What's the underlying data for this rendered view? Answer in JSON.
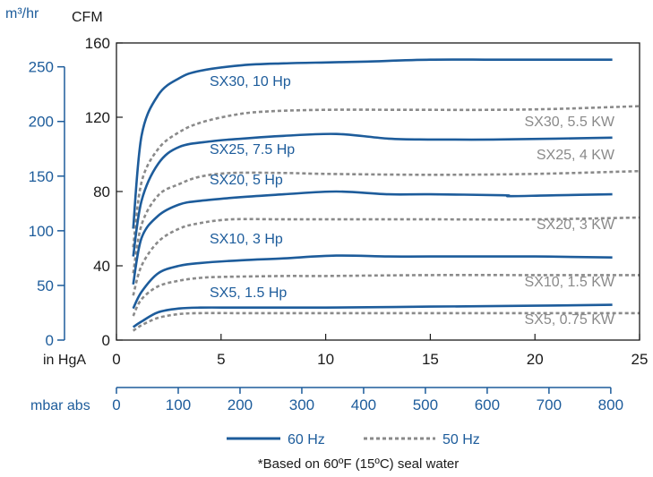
{
  "units": {
    "left_outer": "m³/hr",
    "left_inner": "CFM",
    "bottom_inner": "in HgA",
    "bottom_outer": "mbar abs"
  },
  "legend": {
    "solid_label": "60 Hz",
    "dashed_label": "50 Hz"
  },
  "note": "*Based on 60ºF (15ºC) seal water",
  "colors": {
    "series_60hz": "#1d5c9b",
    "series_50hz": "#8a8a8a",
    "axis": "#1a1a1a",
    "secondary_axis": "#1d5c9b"
  },
  "chart_data": {
    "type": "line",
    "title": "",
    "xlabel": "in HgA",
    "ylabel": "CFM",
    "xlim": [
      0,
      25
    ],
    "ylim": [
      0,
      160
    ],
    "x_ticks": [
      0,
      5,
      10,
      15,
      20,
      25
    ],
    "y_ticks": [
      0,
      40,
      80,
      120,
      160
    ],
    "grid": false,
    "secondary_y_axis": {
      "label": "m³/hr",
      "ticks": [
        0,
        50,
        100,
        150,
        200,
        250
      ],
      "cfm_per_unit": 0.5886
    },
    "secondary_x_axis": {
      "label": "mbar abs",
      "ticks": [
        0,
        100,
        200,
        300,
        400,
        500,
        600,
        700,
        800
      ],
      "inhg_per_unit": 0.02953
    },
    "series": [
      {
        "name": "SX30, 10 Hp",
        "frequency": "60 Hz",
        "x": [
          0.8,
          1.2,
          2,
          3,
          4,
          6,
          8,
          10,
          12,
          15,
          18,
          21,
          23.7
        ],
        "y": [
          60,
          110,
          132,
          141,
          145,
          148,
          149,
          149.5,
          150,
          151,
          151,
          151,
          151
        ]
      },
      {
        "name": "SX30, 5.5 KW",
        "frequency": "50 Hz",
        "x": [
          0.8,
          1.2,
          2,
          3,
          4,
          5.5,
          7,
          10,
          14,
          18,
          21,
          25
        ],
        "y": [
          50,
          85,
          103,
          112,
          117,
          121,
          123,
          124,
          124,
          124,
          124.5,
          126
        ]
      },
      {
        "name": "SX25, 7.5 Hp",
        "frequency": "60 Hz",
        "x": [
          0.8,
          1.2,
          2,
          3,
          4.5,
          6,
          8,
          10.5,
          13,
          15,
          18,
          21,
          23.7
        ],
        "y": [
          45,
          75,
          95,
          104,
          107,
          108.5,
          110,
          111,
          108.5,
          108,
          108,
          108.5,
          109
        ]
      },
      {
        "name": "SX25, 4 KW",
        "frequency": "50 Hz",
        "x": [
          0.8,
          1.2,
          2,
          3,
          4,
          5.5,
          8,
          10,
          15,
          20,
          25
        ],
        "y": [
          36,
          62,
          78,
          84,
          88,
          90,
          90,
          89.5,
          89,
          89.5,
          91
        ]
      },
      {
        "name": "SX20, 5 Hp",
        "frequency": "60 Hz",
        "x": [
          0.8,
          1.2,
          2,
          3,
          4,
          6,
          8,
          10.5,
          13,
          15,
          18.5,
          18.8,
          21,
          23.7
        ],
        "y": [
          30,
          55,
          67,
          73,
          75,
          77,
          78.5,
          80,
          78.5,
          78.5,
          78,
          77.5,
          78,
          78.5
        ]
      },
      {
        "name": "SX20, 3 KW",
        "frequency": "50 Hz",
        "x": [
          0.8,
          1.2,
          2,
          3,
          4,
          5.5,
          8,
          10,
          15,
          20,
          25
        ],
        "y": [
          24,
          40,
          53,
          60,
          63,
          65,
          65,
          65,
          65,
          65,
          66
        ]
      },
      {
        "name": "SX10, 3 Hp",
        "frequency": "60 Hz",
        "x": [
          0.8,
          1.2,
          2,
          3,
          4,
          6,
          8,
          10.5,
          13,
          15,
          20,
          23.7
        ],
        "y": [
          17,
          26,
          36,
          40,
          41.5,
          43,
          44,
          45.5,
          45,
          45,
          45,
          44.5
        ]
      },
      {
        "name": "SX10, 1.5 KW",
        "frequency": "50 Hz",
        "x": [
          0.8,
          1.2,
          2,
          3,
          4,
          5,
          8,
          10,
          15,
          20,
          25
        ],
        "y": [
          13,
          22,
          29,
          32,
          33.5,
          34,
          34.5,
          34.5,
          35,
          35,
          35
        ]
      },
      {
        "name": "SX5, 1.5 Hp",
        "frequency": "60 Hz",
        "x": [
          0.8,
          1.2,
          2,
          3,
          4,
          6,
          10,
          15,
          20,
          23.7
        ],
        "y": [
          7,
          10,
          15,
          17,
          17.5,
          17.5,
          17.5,
          18,
          18.5,
          19
        ]
      },
      {
        "name": "SX5, 0.75 KW",
        "frequency": "50 Hz",
        "x": [
          0.8,
          1.2,
          2,
          3,
          4,
          6,
          10,
          15,
          20,
          25
        ],
        "y": [
          5,
          8,
          12,
          14,
          14.5,
          14.5,
          14.5,
          14.5,
          14.5,
          14.5
        ]
      }
    ],
    "series_labels": [
      "SX30, 10 Hp",
      "SX30, 5.5 KW",
      "SX25, 7.5 Hp",
      "SX25, 4 KW",
      "SX20, 5 Hp",
      "SX20, 3 KW",
      "SX10, 3 Hp",
      "SX10, 1.5 KW",
      "SX5, 1.5 Hp",
      "SX5, 0.75 KW"
    ]
  }
}
